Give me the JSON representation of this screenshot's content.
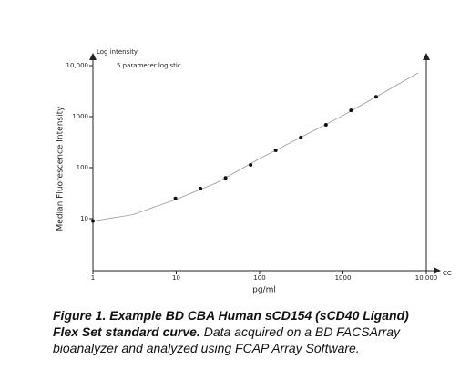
{
  "chart_data": {
    "type": "scatter",
    "title": "5 parameter logistic",
    "ylabel_top": "Log intensity",
    "ylabel": "Median Fluorescence Intensity",
    "xlabel": "pg/ml",
    "x_end_label": "CC",
    "xscale": "log",
    "yscale": "log",
    "xlim": [
      1,
      10000
    ],
    "ylim": [
      1,
      10000
    ],
    "xticks": [
      1,
      10,
      100,
      1000,
      {
        "value": 10000,
        "label": "10,000"
      }
    ],
    "yticks": [
      10,
      100,
      1000,
      {
        "value": 10000,
        "label": "10,000"
      }
    ],
    "series": [
      {
        "color": "#111111",
        "x": [
          1,
          9.77,
          19.5,
          39,
          78,
          156,
          312.5,
          625,
          1250,
          2500
        ],
        "values": [
          9,
          25,
          39,
          63,
          113,
          218,
          390,
          690,
          1330,
          2450
        ]
      }
    ],
    "curve": {
      "color": "#999999",
      "x": [
        1,
        3,
        10,
        30,
        100,
        300,
        1000,
        3000,
        8000
      ],
      "values": [
        9,
        12,
        24,
        50,
        150,
        380,
        1050,
        2900,
        7200
      ]
    }
  },
  "caption": {
    "bold": "Figure 1. Example BD CBA Human sCD154 (sCD40 Ligand) Flex Set standard curve.",
    "text": "Data acquired on a BD FACSArray bioanalyzer and analyzed using FCAP Array Software."
  }
}
